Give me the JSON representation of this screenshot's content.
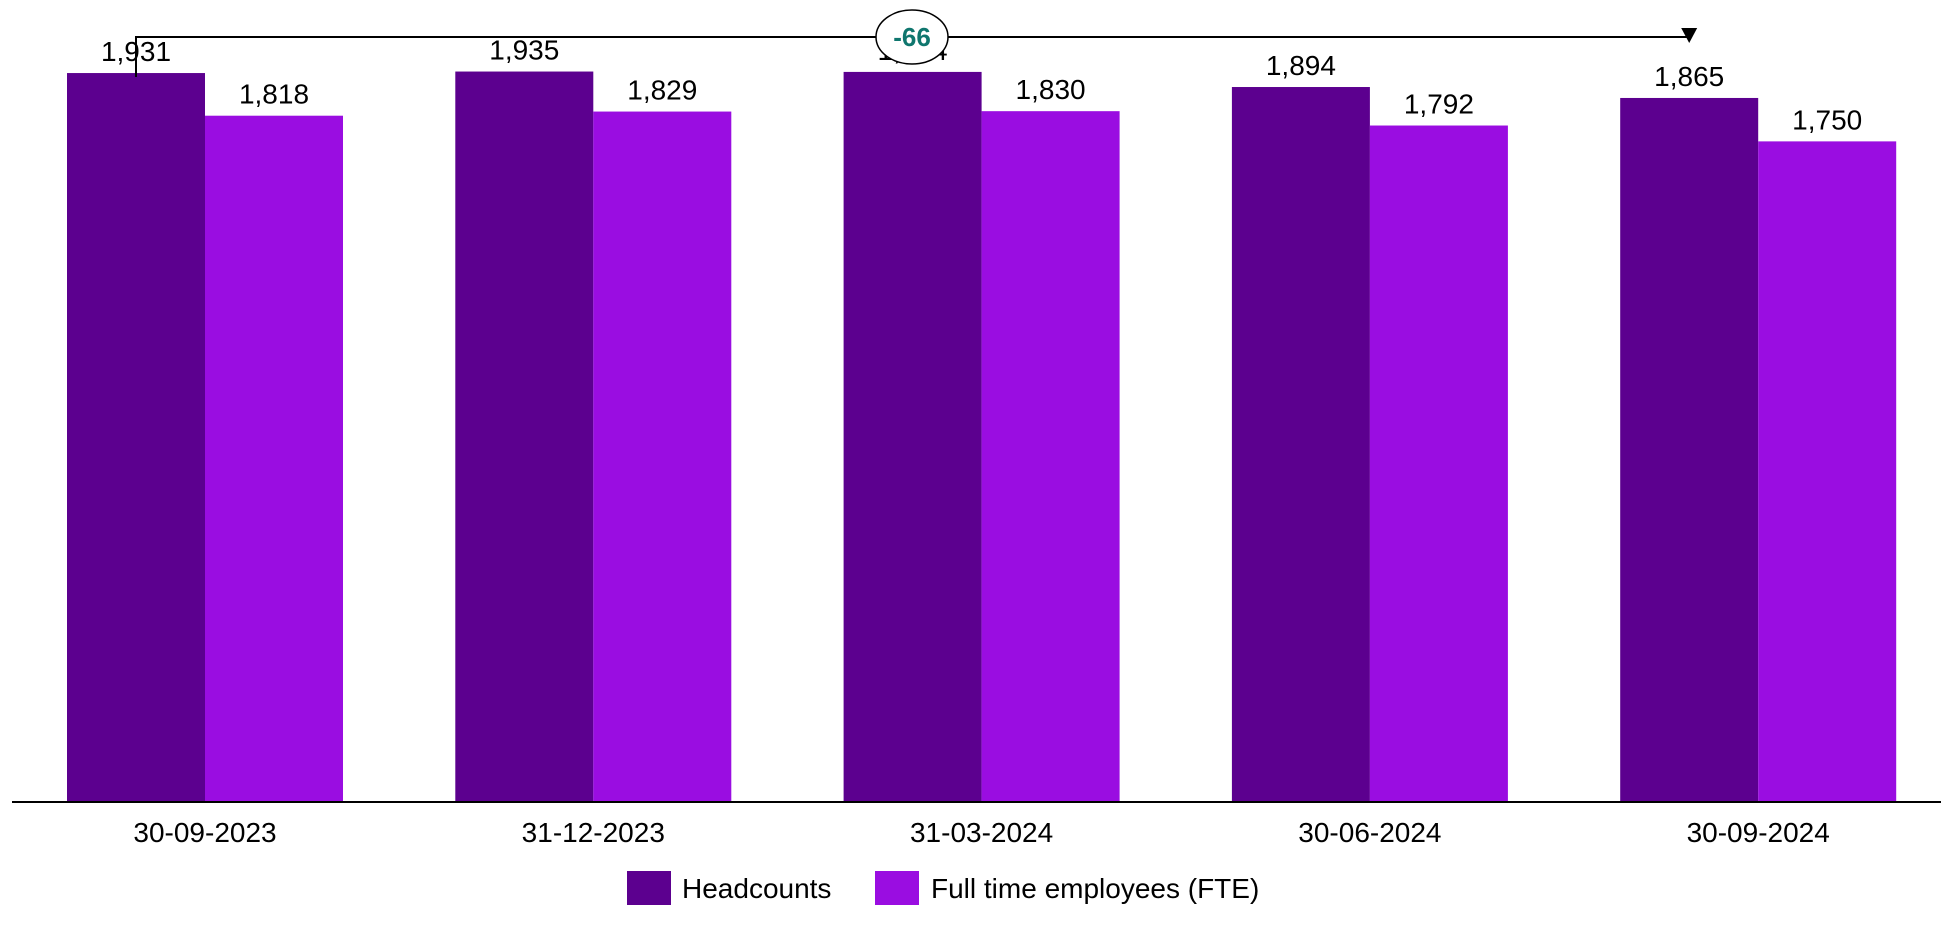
{
  "chart_data": {
    "type": "bar",
    "categories": [
      "30-09-2023",
      "31-12-2023",
      "31-03-2024",
      "30-06-2024",
      "30-09-2024"
    ],
    "series": [
      {
        "name": "Headcounts",
        "values": [
          1931,
          1935,
          1934,
          1894,
          1865
        ],
        "labels": [
          "1,931",
          "1,935",
          "1,934",
          "1,894",
          "1,865"
        ],
        "color": "#5c008f"
      },
      {
        "name": "Full time employees (FTE)",
        "values": [
          1818,
          1829,
          1830,
          1792,
          1750
        ],
        "labels": [
          "1,818",
          "1,829",
          "1,830",
          "1,792",
          "1,750"
        ],
        "color": "#9a0de1"
      }
    ],
    "ylim": [
      0,
      2000
    ],
    "grid": false,
    "legend": "bottom-center",
    "annotation": {
      "text": "-66",
      "from_category": "30-09-2023",
      "to_category": "30-09-2024",
      "color": "#0f766e"
    }
  }
}
